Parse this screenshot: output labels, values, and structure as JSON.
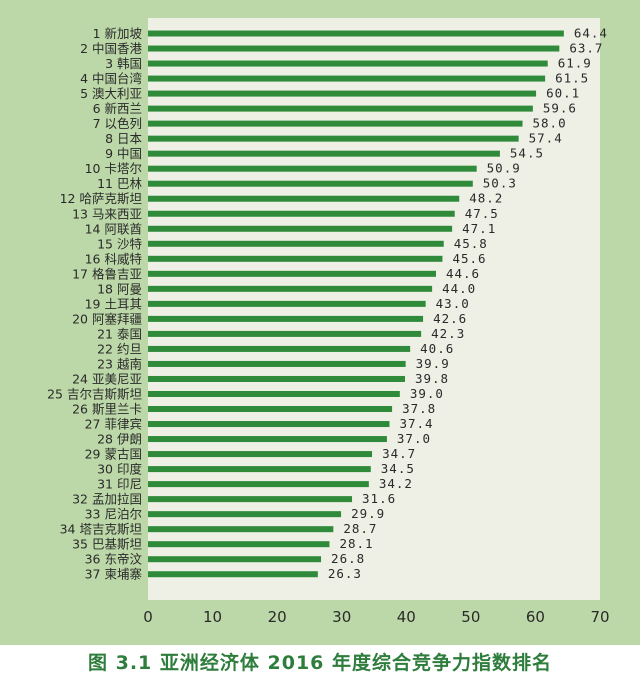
{
  "caption": "图 3.1  亚洲经济体 2016 年度综合竞争力指数排名",
  "colors": {
    "panel_bg": "#bcd8a8",
    "plot_bg": "#eef0e6",
    "bar": "#2f8a3a",
    "text": "#2a2a2a",
    "caption": "#2e7d3c"
  },
  "chart_data": {
    "type": "bar",
    "orientation": "horizontal",
    "title": "",
    "xlabel": "",
    "ylabel": "",
    "xlim": [
      0,
      70
    ],
    "xticks": [
      "0",
      "10",
      "20",
      "30",
      "40",
      "50",
      "60",
      "70"
    ],
    "grid": false,
    "legend": "none",
    "categories": [
      "1 新加坡",
      "2 中国香港",
      "3 韩国",
      "4 中国台湾",
      "5 澳大利亚",
      "6 新西兰",
      "7 以色列",
      "8 日本",
      "9 中国",
      "10 卡塔尔",
      "11 巴林",
      "12 哈萨克斯坦",
      "13 马来西亚",
      "14 阿联酋",
      "15 沙特",
      "16 科威特",
      "17 格鲁吉亚",
      "18 阿曼",
      "19 土耳其",
      "20 阿塞拜疆",
      "21 泰国",
      "22 约旦",
      "23 越南",
      "24 亚美尼亚",
      "25 吉尔吉斯斯坦",
      "26 斯里兰卡",
      "27 菲律宾",
      "28 伊朗",
      "29 蒙古国",
      "30 印度",
      "31 印尼",
      "32 孟加拉国",
      "33 尼泊尔",
      "34 塔吉克斯坦",
      "35 巴基斯坦",
      "36 东帝汶",
      "37 柬埔寨"
    ],
    "values": [
      64.4,
      63.7,
      61.9,
      61.5,
      60.1,
      59.6,
      58.0,
      57.4,
      54.5,
      50.9,
      50.3,
      48.2,
      47.5,
      47.1,
      45.8,
      45.6,
      44.6,
      44.0,
      43.0,
      42.6,
      42.3,
      40.6,
      39.9,
      39.8,
      39.0,
      37.8,
      37.4,
      37.0,
      34.7,
      34.5,
      34.2,
      31.6,
      29.9,
      28.7,
      28.1,
      26.8,
      26.3
    ],
    "value_labels": [
      "64.4",
      "63.7",
      "61.9",
      "61.5",
      "60.1",
      "59.6",
      "58.0",
      "57.4",
      "54.5",
      "50.9",
      "50.3",
      "48.2",
      "47.5",
      "47.1",
      "45.8",
      "45.6",
      "44.6",
      "44.0",
      "43.0",
      "42.6",
      "42.3",
      "40.6",
      "39.9",
      "39.8",
      "39.0",
      "37.8",
      "37.4",
      "37.0",
      "34.7",
      "34.5",
      "34.2",
      "31.6",
      "29.9",
      "28.7",
      "28.1",
      "26.8",
      "26.3"
    ]
  }
}
